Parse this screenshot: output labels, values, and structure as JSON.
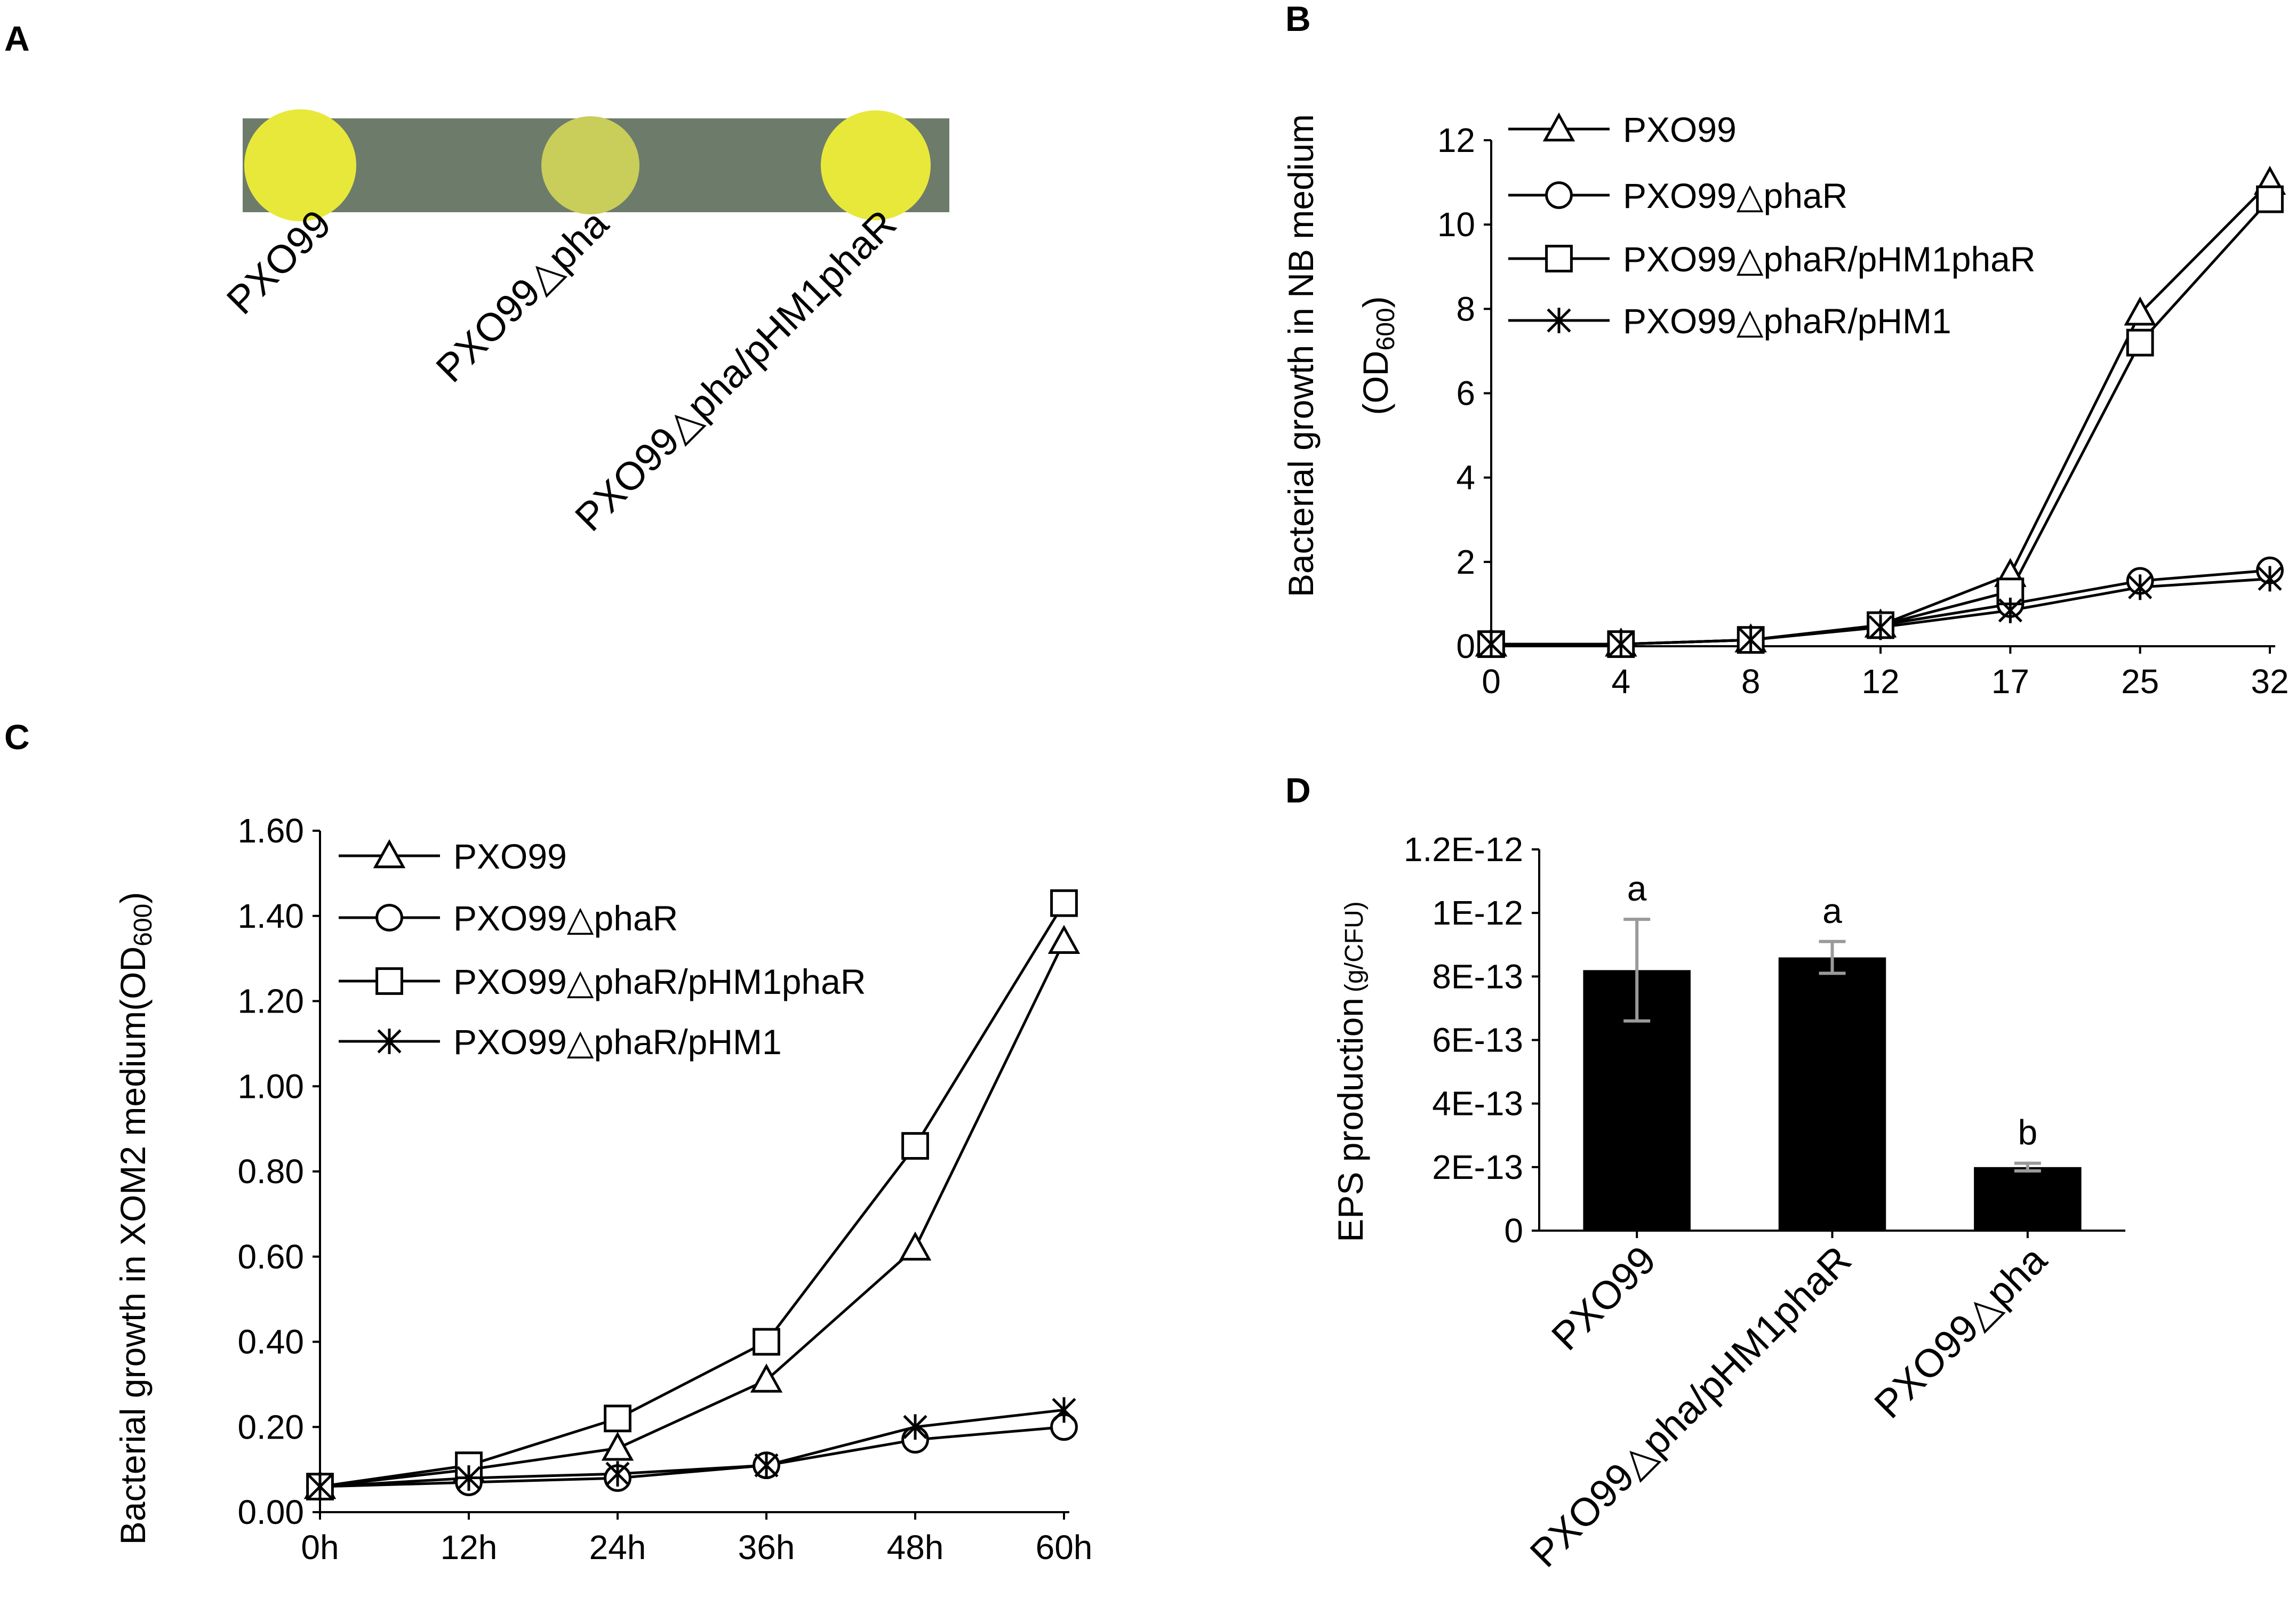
{
  "panel_labels": {
    "a": "A",
    "b": "B",
    "c": "C",
    "d": "D"
  },
  "colors": {
    "plate_background": "#6d7b6b",
    "colony": "#e8e83a",
    "colony_pale": "#c9cd5a",
    "bar": "#000000",
    "error_bar": "#9a9a9a"
  },
  "panel_a": {
    "strains": [
      "PXO99",
      "PXO99△pha",
      "PXO99△pha/pHM1phaR"
    ],
    "colony_intensity": [
      1.0,
      0.55,
      1.0
    ]
  },
  "chart_data": [
    {
      "panel": "B",
      "type": "line",
      "title": "",
      "xlabel": "",
      "ylabel": "Bacterial growth in NB medium",
      "ylabel_line2": "(OD",
      "ylabel_sub": "600",
      "ylabel_close": ")",
      "categories": [
        "0",
        "4",
        "8",
        "12",
        "17",
        "25",
        "32"
      ],
      "ylim": [
        0,
        12
      ],
      "yticks": [
        "0",
        "2",
        "4",
        "6",
        "8",
        "10",
        "12"
      ],
      "legend_position": "top-left",
      "series": [
        {
          "name": "PXO99",
          "marker": "triangle",
          "values": [
            0.05,
            0.05,
            0.15,
            0.5,
            1.7,
            7.9,
            11.0
          ]
        },
        {
          "name": "PXO99△phaR",
          "marker": "circle",
          "values": [
            0.05,
            0.05,
            0.15,
            0.5,
            1.0,
            1.55,
            1.8
          ]
        },
        {
          "name": "PXO99△phaR/pHM1phaR",
          "marker": "square",
          "values": [
            0.05,
            0.05,
            0.15,
            0.5,
            1.3,
            7.2,
            10.6
          ]
        },
        {
          "name": "PXO99△phaR/pHM1",
          "marker": "star",
          "values": [
            0.05,
            0.05,
            0.15,
            0.45,
            0.85,
            1.4,
            1.6
          ]
        }
      ]
    },
    {
      "panel": "C",
      "type": "line",
      "title": "",
      "xlabel": "",
      "ylabel": "Bacterial growth in XOM2 medium(OD",
      "ylabel_sub": "600",
      "ylabel_close": ")",
      "categories": [
        "0h",
        "12h",
        "24h",
        "36h",
        "48h",
        "60h"
      ],
      "ylim": [
        0,
        1.6
      ],
      "yticks": [
        "0.00",
        "0.20",
        "0.40",
        "0.60",
        "0.80",
        "1.00",
        "1.20",
        "1.40",
        "1.60"
      ],
      "legend_position": "top-left",
      "series": [
        {
          "name": "PXO99",
          "marker": "triangle",
          "values": [
            0.06,
            0.1,
            0.15,
            0.31,
            0.62,
            1.34
          ]
        },
        {
          "name": "PXO99△phaR",
          "marker": "circle",
          "values": [
            0.06,
            0.07,
            0.08,
            0.11,
            0.17,
            0.2
          ]
        },
        {
          "name": "PXO99△phaR/pHM1phaR",
          "marker": "square",
          "values": [
            0.06,
            0.11,
            0.22,
            0.4,
            0.86,
            1.43
          ]
        },
        {
          "name": "PXO99△phaR/pHM1",
          "marker": "xstar",
          "values": [
            0.06,
            0.08,
            0.09,
            0.11,
            0.2,
            0.24
          ]
        }
      ]
    },
    {
      "panel": "D",
      "type": "bar",
      "title": "",
      "xlabel": "",
      "ylabel": "EPS production",
      "ylabel_unit": "(g/CFU)",
      "categories": [
        "PXO99",
        "PXO99△pha/pHM1phaR",
        "PXO99△pha"
      ],
      "values": [
        8.2e-13,
        8.6e-13,
        2e-13
      ],
      "errors": [
        1.6e-13,
        5e-14,
        1.2e-14
      ],
      "significance": [
        "a",
        "a",
        "b"
      ],
      "ylim": [
        0,
        1.2e-12
      ],
      "yticks": [
        "0",
        "2E-13",
        "4E-13",
        "6E-13",
        "8E-13",
        "1E-12",
        "1.2E-12"
      ]
    }
  ]
}
